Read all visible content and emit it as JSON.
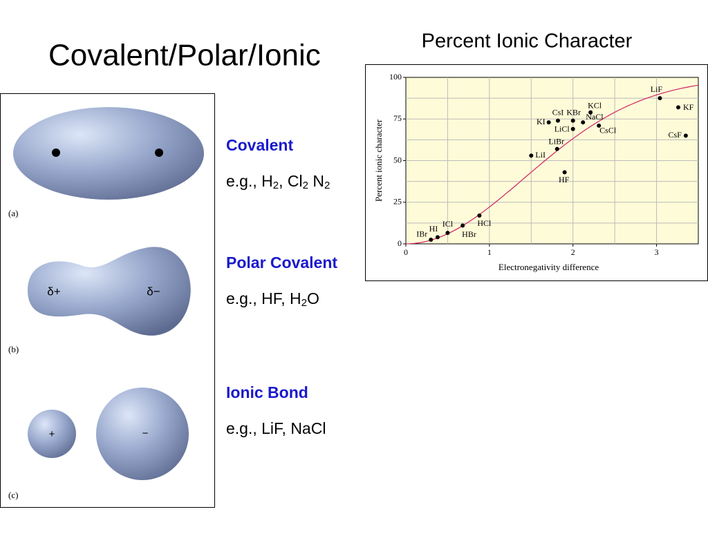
{
  "title": "Covalent/Polar/Ionic",
  "figure": {
    "panel_a": "(a)",
    "panel_b": "(b)",
    "panel_c": "(c)",
    "delta_plus": "δ+",
    "delta_minus": "δ−",
    "plus": "+",
    "minus": "−"
  },
  "bond_types": [
    {
      "name": "Covalent",
      "example": [
        "e.g., H",
        "2",
        ", Cl",
        "2",
        " N",
        "2"
      ]
    },
    {
      "name": "Polar Covalent",
      "example": [
        "e.g., HF, H",
        "2",
        "O"
      ]
    },
    {
      "name": "Ionic Bond",
      "example": [
        "e.g., LiF, NaCl"
      ]
    }
  ],
  "chart_data": {
    "type": "scatter",
    "title": "Percent Ionic Character",
    "xlabel": "Electronegativity difference",
    "ylabel": "Percent ionic character",
    "labels": [
      "IBr",
      "HI",
      "ICl",
      "HBr",
      "HCl",
      "LiI",
      "KI",
      "CsI",
      "KBr",
      "KCl",
      "NaCl",
      "LiCl",
      "LiBr",
      "CsCl",
      "HF",
      "LiF",
      "KF",
      "CsF"
    ],
    "x": [
      0.3,
      0.38,
      0.5,
      0.68,
      0.88,
      1.5,
      1.71,
      1.82,
      2.0,
      2.21,
      2.12,
      2.0,
      1.81,
      2.31,
      1.9,
      3.04,
      3.26,
      3.35
    ],
    "values": [
      2.5,
      4,
      6.6,
      11,
      17,
      53,
      73,
      74,
      74,
      79,
      73,
      69,
      57,
      71,
      43,
      87.5,
      82,
      65
    ],
    "color": "#000000",
    "xlim": [
      0,
      3.5
    ],
    "ylim": [
      0,
      100
    ],
    "xticks": [
      0,
      1,
      2,
      3
    ],
    "yticks": [
      0,
      25,
      50,
      75,
      100
    ],
    "grid": true
  }
}
